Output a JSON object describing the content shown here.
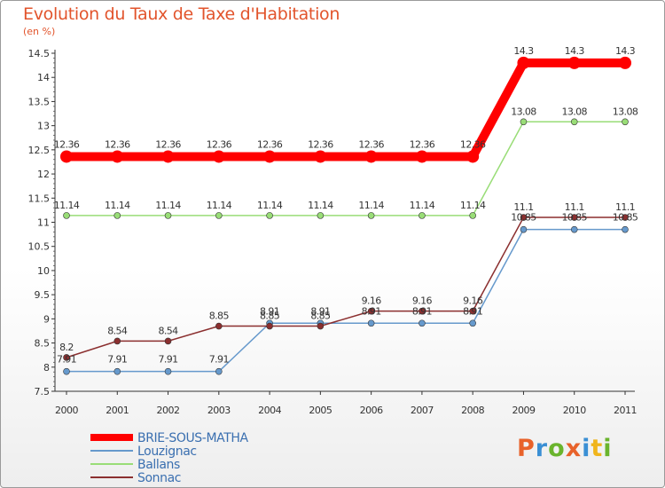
{
  "header": {
    "title": "Evolution du Taux de Taxe d'Habitation",
    "unit": "(en %)"
  },
  "logo": {
    "text": "Proxiti"
  },
  "chart_data": {
    "type": "line",
    "title": "Evolution du Taux de Taxe d'Habitation",
    "subtitle": "(en %)",
    "xlabel": "",
    "ylabel": "",
    "x": [
      2000,
      2001,
      2002,
      2003,
      2004,
      2005,
      2006,
      2007,
      2008,
      2009,
      2010,
      2011
    ],
    "x_labels": [
      "2000",
      "2001",
      "2002",
      "2003",
      "2004",
      "2005",
      "2006",
      "2007",
      "2008",
      "2009",
      "2010",
      "2011"
    ],
    "y_ticks": [
      7.5,
      8,
      8.5,
      9,
      9.5,
      10,
      10.5,
      11,
      11.5,
      12,
      12.5,
      13,
      13.5,
      14,
      14.5
    ],
    "y_tick_labels": [
      "7.5",
      "8",
      "8.5",
      "9",
      "9.5",
      "10",
      "10.5",
      "11",
      "11.5",
      "12",
      "12.5",
      "13",
      "13.5",
      "14",
      "14.5"
    ],
    "ylim": [
      7.5,
      14.5
    ],
    "grid": false,
    "legend": "bottom-left",
    "series": [
      {
        "name": "BRIE-SOUS-MATHA",
        "color": "#ff0000",
        "values": [
          12.36,
          12.36,
          12.36,
          12.36,
          12.36,
          12.36,
          12.36,
          12.36,
          12.36,
          14.3,
          14.3,
          14.3
        ],
        "labels": [
          "12.36",
          "12.36",
          "12.36",
          "12.36",
          "12.36",
          "12.36",
          "12.36",
          "12.36",
          "12.36",
          "14.3",
          "14.3",
          "14.3"
        ]
      },
      {
        "name": "Louzignac",
        "color": "#6699cc",
        "values": [
          7.91,
          7.91,
          7.91,
          7.91,
          8.91,
          8.91,
          8.91,
          8.91,
          8.91,
          10.85,
          10.85,
          10.85
        ],
        "labels": [
          "7.91",
          "7.91",
          "7.91",
          "7.91",
          "8.91",
          "8.91",
          "8.91",
          "8.91",
          "8.91",
          "10.85",
          "10.85",
          "10.85"
        ]
      },
      {
        "name": "Ballans",
        "color": "#99dd77",
        "values": [
          11.14,
          11.14,
          11.14,
          11.14,
          11.14,
          11.14,
          11.14,
          11.14,
          11.14,
          13.08,
          13.08,
          13.08
        ],
        "labels": [
          "11.14",
          "11.14",
          "11.14",
          "11.14",
          "11.14",
          "11.14",
          "11.14",
          "11.14",
          "11.14",
          "13.08",
          "13.08",
          "13.08"
        ]
      },
      {
        "name": "Sonnac",
        "color": "#8b2f2f",
        "values": [
          8.2,
          8.54,
          8.54,
          8.85,
          8.85,
          8.85,
          9.16,
          9.16,
          9.16,
          11.1,
          11.1,
          11.1
        ],
        "labels": [
          "8.2",
          "8.54",
          "8.54",
          "8.85",
          "8.85",
          "8.85",
          "9.16",
          "9.16",
          "9.16",
          "11.1",
          "11.1",
          "11.1"
        ]
      }
    ]
  }
}
